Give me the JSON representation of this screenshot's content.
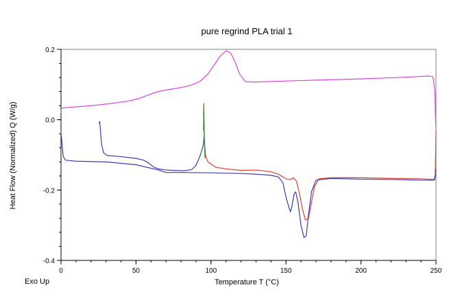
{
  "chart_data": {
    "type": "line",
    "title": "pure regrind PLA trial 1",
    "xlabel": "Temperature  T (°C)",
    "ylabel": "Heat Flow (Normalized)  Q  (W/g)",
    "corner_note": "Exo Up",
    "xlim": [
      0,
      250
    ],
    "ylim": [
      -0.4,
      0.2
    ],
    "x_ticks": [
      0,
      50,
      100,
      150,
      200,
      250
    ],
    "x_tick_labels": [
      "0",
      "50",
      "100",
      "150",
      "200",
      "250"
    ],
    "y_ticks": [
      0.2,
      0.0,
      -0.2,
      -0.4
    ],
    "y_tick_labels": [
      "0.2",
      "0.0",
      "-0.2",
      "-0.4"
    ],
    "x_minor_step": 10,
    "y_minor_step": 0.04,
    "grid": false,
    "series": [
      {
        "color": "#e040e0",
        "points": [
          [
            0,
            0.02
          ],
          [
            0.3,
            0.033
          ],
          [
            5,
            0.035
          ],
          [
            15,
            0.038
          ],
          [
            25,
            0.042
          ],
          [
            35,
            0.047
          ],
          [
            45,
            0.053
          ],
          [
            52,
            0.06
          ],
          [
            58,
            0.07
          ],
          [
            63,
            0.078
          ],
          [
            68,
            0.083
          ],
          [
            75,
            0.088
          ],
          [
            82,
            0.093
          ],
          [
            88,
            0.1
          ],
          [
            93,
            0.11
          ],
          [
            98,
            0.13
          ],
          [
            102,
            0.155
          ],
          [
            106,
            0.18
          ],
          [
            110,
            0.196
          ],
          [
            113,
            0.19
          ],
          [
            116,
            0.165
          ],
          [
            119,
            0.13
          ],
          [
            123,
            0.108
          ],
          [
            130,
            0.107
          ],
          [
            150,
            0.11
          ],
          [
            175,
            0.113
          ],
          [
            200,
            0.116
          ],
          [
            225,
            0.12
          ],
          [
            245,
            0.124
          ],
          [
            248,
            0.122
          ],
          [
            249.3,
            0.08
          ],
          [
            249.7,
            0.0
          ],
          [
            250,
            -0.025
          ]
        ]
      },
      {
        "color": "#e03c2c",
        "points": [
          [
            95,
            0.025
          ],
          [
            95.5,
            -0.06
          ],
          [
            96.5,
            -0.105
          ],
          [
            98,
            -0.12
          ],
          [
            103,
            -0.135
          ],
          [
            110,
            -0.14
          ],
          [
            120,
            -0.144
          ],
          [
            130,
            -0.143
          ],
          [
            140,
            -0.148
          ],
          [
            145,
            -0.155
          ],
          [
            150,
            -0.168
          ],
          [
            153,
            -0.17
          ],
          [
            155,
            -0.165
          ],
          [
            157,
            -0.175
          ],
          [
            159,
            -0.21
          ],
          [
            161,
            -0.255
          ],
          [
            163,
            -0.285
          ],
          [
            165,
            -0.28
          ],
          [
            167,
            -0.235
          ],
          [
            169,
            -0.19
          ],
          [
            172,
            -0.168
          ],
          [
            180,
            -0.165
          ],
          [
            200,
            -0.165
          ],
          [
            220,
            -0.167
          ],
          [
            240,
            -0.168
          ],
          [
            248,
            -0.17
          ],
          [
            249.5,
            -0.165
          ],
          [
            250,
            -0.03
          ]
        ]
      },
      {
        "color": "#2e8b2e",
        "points": [
          [
            95,
            -0.03
          ],
          [
            95.2,
            0.046
          ],
          [
            95.6,
            -0.06
          ],
          [
            96,
            -0.11
          ]
        ]
      },
      {
        "color": "#3a3ab8",
        "points": [
          [
            0,
            -0.035
          ],
          [
            0.7,
            -0.07
          ],
          [
            1.5,
            -0.105
          ],
          [
            3,
            -0.115
          ],
          [
            10,
            -0.118
          ],
          [
            30,
            -0.12
          ],
          [
            50,
            -0.128
          ],
          [
            58,
            -0.136
          ],
          [
            65,
            -0.143
          ],
          [
            70,
            -0.15
          ],
          [
            80,
            -0.15
          ],
          [
            100,
            -0.151
          ],
          [
            120,
            -0.153
          ],
          [
            130,
            -0.155
          ],
          [
            140,
            -0.158
          ],
          [
            145,
            -0.163
          ],
          [
            148,
            -0.18
          ],
          [
            150,
            -0.22
          ],
          [
            152,
            -0.25
          ],
          [
            153,
            -0.262
          ],
          [
            154,
            -0.245
          ],
          [
            155.5,
            -0.21
          ],
          [
            156.5,
            -0.205
          ],
          [
            158,
            -0.235
          ],
          [
            160,
            -0.3
          ],
          [
            162,
            -0.335
          ],
          [
            163.5,
            -0.33
          ],
          [
            165,
            -0.27
          ],
          [
            167,
            -0.205
          ],
          [
            170,
            -0.172
          ],
          [
            180,
            -0.167
          ],
          [
            200,
            -0.169
          ],
          [
            220,
            -0.17
          ],
          [
            240,
            -0.172
          ],
          [
            249,
            -0.172
          ],
          [
            250,
            -0.14
          ]
        ]
      },
      {
        "color": "#3a3ab8",
        "points": [
          [
            25.3,
            -0.01
          ],
          [
            25.8,
            -0.005
          ],
          [
            26.2,
            -0.025
          ],
          [
            27,
            -0.07
          ],
          [
            28.5,
            -0.095
          ],
          [
            31,
            -0.102
          ],
          [
            40,
            -0.105
          ],
          [
            50,
            -0.11
          ],
          [
            55,
            -0.115
          ],
          [
            58,
            -0.122
          ],
          [
            62,
            -0.135
          ],
          [
            65,
            -0.14
          ],
          [
            70,
            -0.143
          ],
          [
            75,
            -0.144
          ],
          [
            82,
            -0.145
          ],
          [
            87,
            -0.142
          ],
          [
            90,
            -0.13
          ],
          [
            93,
            -0.1
          ],
          [
            95,
            -0.07
          ],
          [
            95.3,
            -0.05
          ]
        ]
      }
    ]
  }
}
